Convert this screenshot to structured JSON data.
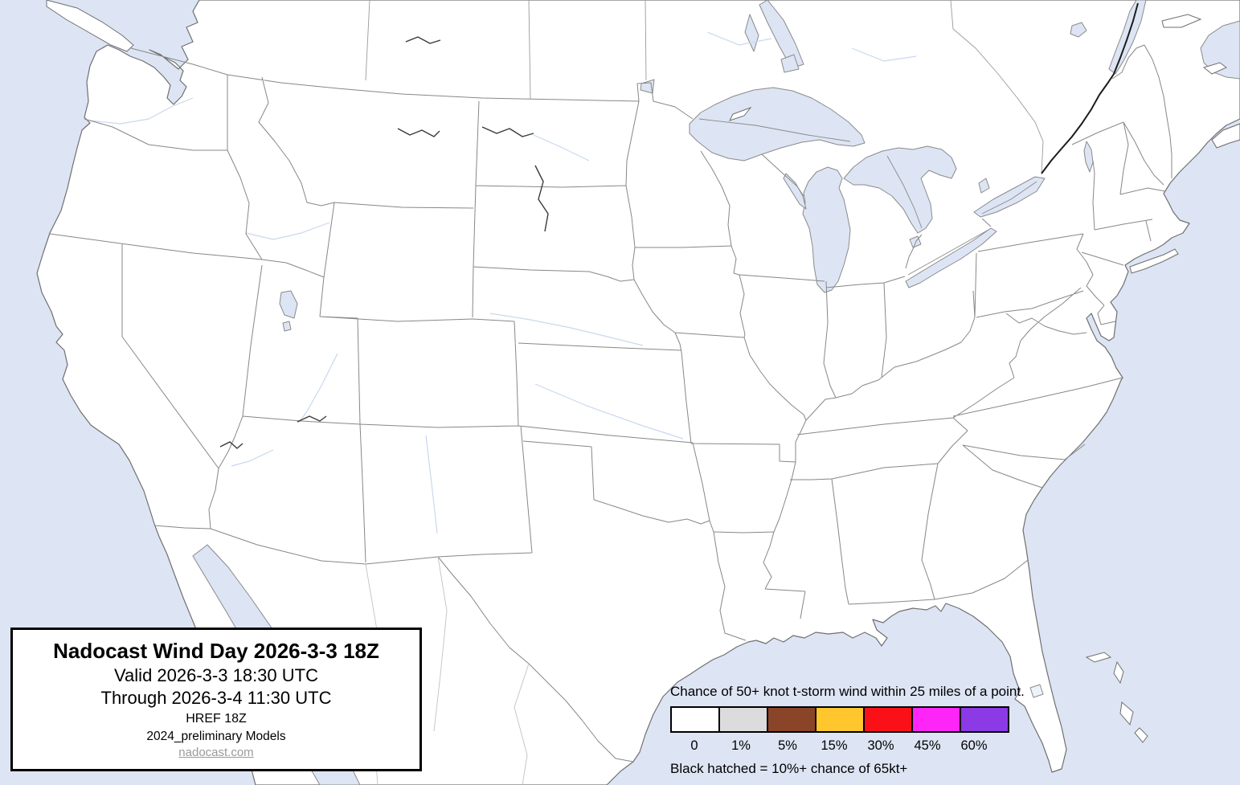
{
  "map": {
    "region_label": "Continental United States state map",
    "ocean_hex": "#dde5f4",
    "land_hex": "#ffffff",
    "coast_hex": "#6f6f6f",
    "state_border_hex": "#878787"
  },
  "info_box": {
    "title": "Nadocast Wind Day 2026-3-3 18Z",
    "valid_line": "Valid 2026-3-3 18:30 UTC",
    "through_line": "Through 2026-3-4 11:30 UTC",
    "model_run": "HREF 18Z",
    "models_line": "2024_preliminary Models",
    "site_link": "nadocast.com"
  },
  "legend": {
    "title": "Chance of 50+ knot t-storm wind within 25 miles of a point.",
    "note": "Black hatched = 10%+ chance of 65kt+",
    "bins": [
      {
        "label": "0",
        "color": "#ffffff"
      },
      {
        "label": "1%",
        "color": "#dcdcdc"
      },
      {
        "label": "5%",
        "color": "#8a4528"
      },
      {
        "label": "15%",
        "color": "#ffc62e"
      },
      {
        "label": "30%",
        "color": "#fa1117"
      },
      {
        "label": "45%",
        "color": "#fe25f9"
      },
      {
        "label": "60%",
        "color": "#8c39e6"
      }
    ]
  }
}
